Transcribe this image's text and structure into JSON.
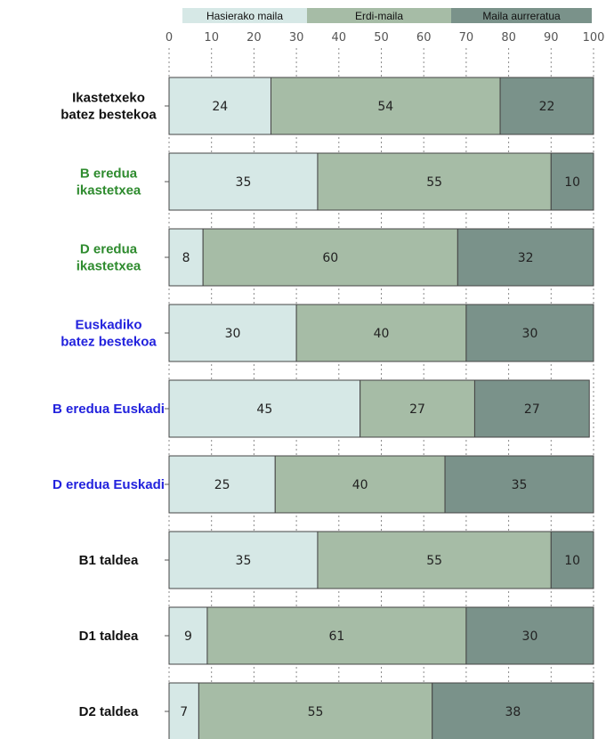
{
  "chart_data": {
    "type": "bar",
    "orientation": "horizontal",
    "stacked": true,
    "title": "",
    "xlabel": "",
    "ylabel": "",
    "xlim": [
      0,
      100
    ],
    "x_ticks": [
      "0",
      "10",
      "20",
      "30",
      "40",
      "50",
      "60",
      "70",
      "80",
      "90",
      "100"
    ],
    "grid": "vertical dotted",
    "legend_position": "top",
    "categories": [
      {
        "label": "Ikastetxeko batez bestekoa",
        "lines": [
          "Ikastetxeko",
          "batez bestekoa"
        ],
        "color": "#111111"
      },
      {
        "label": "B eredua ikastetxea",
        "lines": [
          "B eredua",
          "ikastetxea"
        ],
        "color": "#2e8b2e"
      },
      {
        "label": "D eredua ikastetxea",
        "lines": [
          "D eredua",
          "ikastetxea"
        ],
        "color": "#2e8b2e"
      },
      {
        "label": "Euskadiko batez bestekoa",
        "lines": [
          "Euskadiko",
          "batez bestekoa"
        ],
        "color": "#2222dd"
      },
      {
        "label": "B eredua Euskadi",
        "lines": [
          "B eredua Euskadi"
        ],
        "color": "#2222dd"
      },
      {
        "label": "D eredua Euskadi",
        "lines": [
          "D eredua Euskadi"
        ],
        "color": "#2222dd"
      },
      {
        "label": "B1 taldea",
        "lines": [
          "B1 taldea"
        ],
        "color": "#111111"
      },
      {
        "label": "D1 taldea",
        "lines": [
          "D1 taldea"
        ],
        "color": "#111111"
      },
      {
        "label": "D2 taldea",
        "lines": [
          "D2 taldea"
        ],
        "color": "#111111"
      }
    ],
    "series": [
      {
        "name": "Hasierako maila",
        "color": "#d6e8e6",
        "values": [
          24,
          35,
          8,
          30,
          45,
          25,
          35,
          9,
          7
        ]
      },
      {
        "name": "Erdi-maila",
        "color": "#a6bca6",
        "values": [
          54,
          55,
          60,
          40,
          27,
          40,
          55,
          61,
          55
        ]
      },
      {
        "name": "Maila aurreratua",
        "color": "#7a928a",
        "values": [
          22,
          10,
          32,
          30,
          27,
          35,
          10,
          30,
          38
        ]
      }
    ]
  }
}
